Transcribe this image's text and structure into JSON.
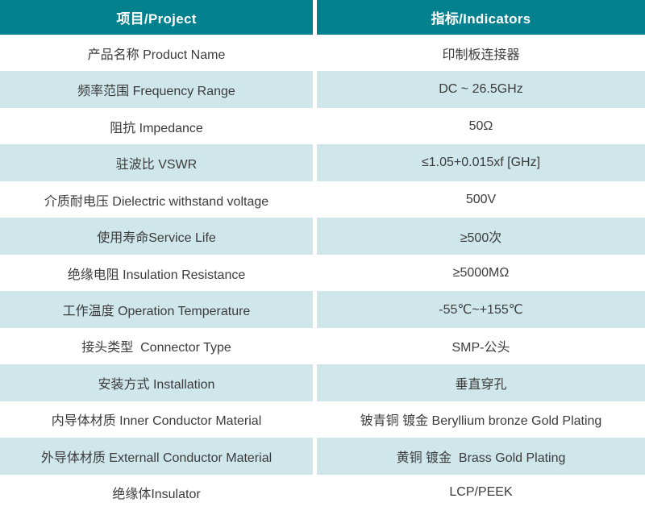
{
  "table": {
    "header": {
      "col1": "项目/Project",
      "col2": "指标/Indicators"
    },
    "rows": [
      {
        "project": "产品名称 Product Name",
        "indicator": "印制板连接器"
      },
      {
        "project": "频率范围 Frequency Range",
        "indicator": "DC ~ 26.5GHz"
      },
      {
        "project": "阻抗 Impedance",
        "indicator": "50Ω"
      },
      {
        "project": "驻波比 VSWR",
        "indicator": "≤1.05+0.015xf [GHz]"
      },
      {
        "project": "介质耐电压 Dielectric withstand voltage",
        "indicator": "500V"
      },
      {
        "project": "使用寿命Service Life",
        "indicator": "≥500次"
      },
      {
        "project": "绝缘电阻 Insulation Resistance",
        "indicator": "≥5000MΩ"
      },
      {
        "project": "工作温度 Operation Temperature",
        "indicator": "-55℃~+155℃"
      },
      {
        "project": "接头类型  Connector Type",
        "indicator": "SMP-公头"
      },
      {
        "project": "安装方式 Installation",
        "indicator": "垂直穿孔"
      },
      {
        "project": "内导体材质 Inner Conductor Material",
        "indicator": "铍青铜 镀金 Beryllium bronze Gold Plating"
      },
      {
        "project": "外导体材质 Externall Conductor Material",
        "indicator": "黄铜 镀金  Brass Gold Plating"
      },
      {
        "project": "绝缘体Insulator",
        "indicator": "LCP/PEEK"
      }
    ],
    "colors": {
      "header_bg": "#03818F",
      "row_alt_bg": "#CFE6EB",
      "row_bg": "#FFFFFF",
      "header_text": "#FFFFFF",
      "body_text": "#3C3C3C"
    }
  }
}
